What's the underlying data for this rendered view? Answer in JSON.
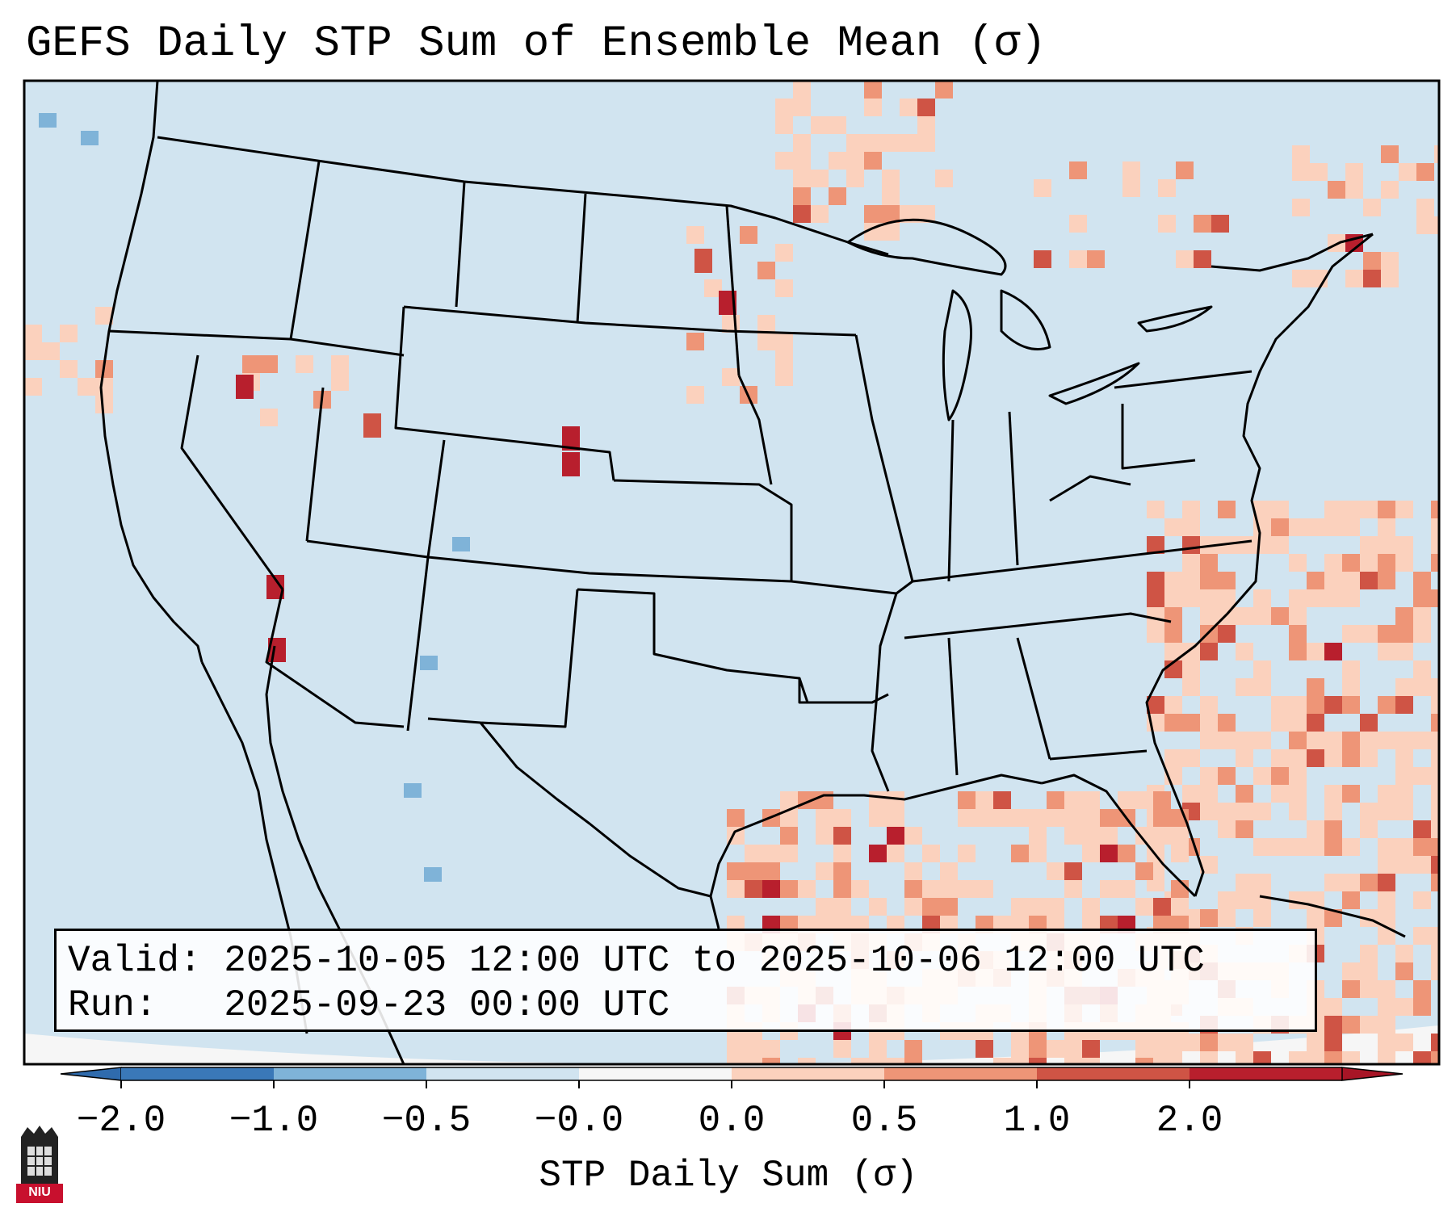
{
  "title": "GEFS Daily STP Sum of Ensemble Mean (σ)",
  "info": {
    "valid_line": "Valid: 2025-10-05 12:00 UTC to 2025-10-06 12:00 UTC",
    "run_line": "Run:   2025-09-23 00:00 UTC"
  },
  "colorbar": {
    "label": "STP Daily Sum (σ)",
    "ticks": [
      "−2.0",
      "−1.0",
      "−0.5",
      "−0.0",
      "0.0",
      "0.5",
      "1.0",
      "2.0"
    ],
    "colors": [
      "#3a78b8",
      "#7fb3d8",
      "#d1e4f0",
      "#f6f6f6",
      "#fbd1bd",
      "#ee9577",
      "#cf5445",
      "#b81f2d"
    ],
    "extend_low": "#2f6bad",
    "extend_high": "#a81526"
  },
  "map": {
    "background_color": "#d1e4f0",
    "ocean_edge_color": "#f6f6f6"
  },
  "logo": {
    "text": "NIU"
  }
}
